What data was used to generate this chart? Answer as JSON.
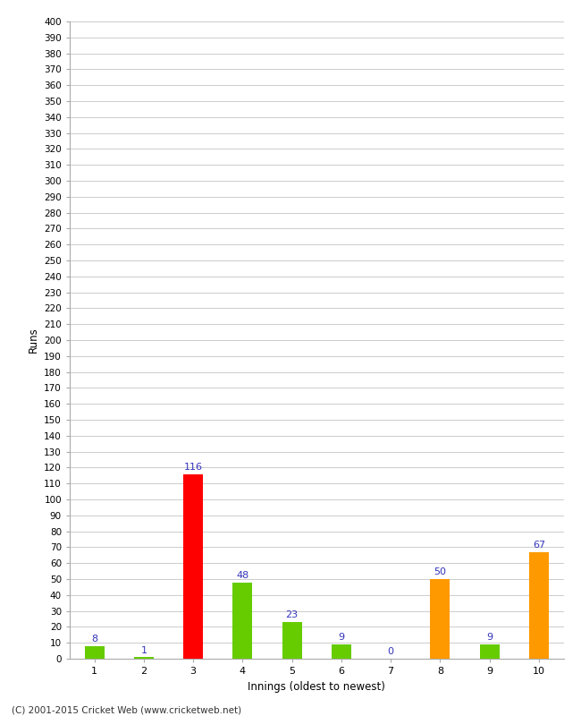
{
  "categories": [
    "1",
    "2",
    "3",
    "4",
    "5",
    "6",
    "7",
    "8",
    "9",
    "10"
  ],
  "values": [
    8,
    1,
    116,
    48,
    23,
    9,
    0,
    50,
    9,
    67
  ],
  "bar_colors": [
    "#66cc00",
    "#66cc00",
    "#ff0000",
    "#66cc00",
    "#66cc00",
    "#66cc00",
    "#66cc00",
    "#ff9900",
    "#66cc00",
    "#ff9900"
  ],
  "xlabel": "Innings (oldest to newest)",
  "ylabel": "Runs",
  "ylim": [
    0,
    400
  ],
  "ytick_step": 10,
  "label_color": "#3333bb",
  "background_color": "#ffffff",
  "grid_color": "#cccccc",
  "footer": "(C) 2001-2015 Cricket Web (www.cricketweb.net)"
}
